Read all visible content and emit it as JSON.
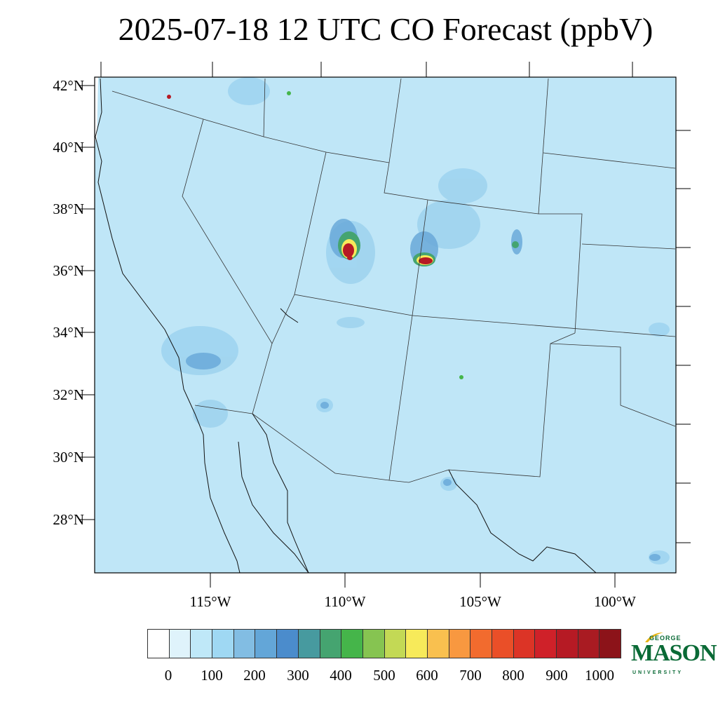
{
  "title": "2025-07-18 12 UTC CO Forecast (ppbV)",
  "lat_labels": [
    "42°N",
    "40°N",
    "38°N",
    "36°N",
    "34°N",
    "32°N",
    "30°N",
    "28°N"
  ],
  "lon_labels": [
    "115°W",
    "110°W",
    "105°W",
    "100°W"
  ],
  "colorbar": {
    "colors": [
      "#ffffff",
      "#dff3fb",
      "#bfe8f8",
      "#9fd8f3",
      "#82bde3",
      "#63a6d8",
      "#4b8ccc",
      "#479a9f",
      "#45a470",
      "#45b54a",
      "#86c451",
      "#c3d955",
      "#f7ea5a",
      "#f9c04f",
      "#f89840",
      "#f26b2e",
      "#ea4f28",
      "#dc3426",
      "#cf2129",
      "#b61a24",
      "#a91b22",
      "#8c1319"
    ],
    "labels": [
      "0",
      "100",
      "200",
      "300",
      "400",
      "500",
      "600",
      "700",
      "800",
      "900",
      "1000"
    ]
  },
  "logo": {
    "top": "GEORGE",
    "main": "MASON",
    "bottom": "UNIVERSITY"
  }
}
